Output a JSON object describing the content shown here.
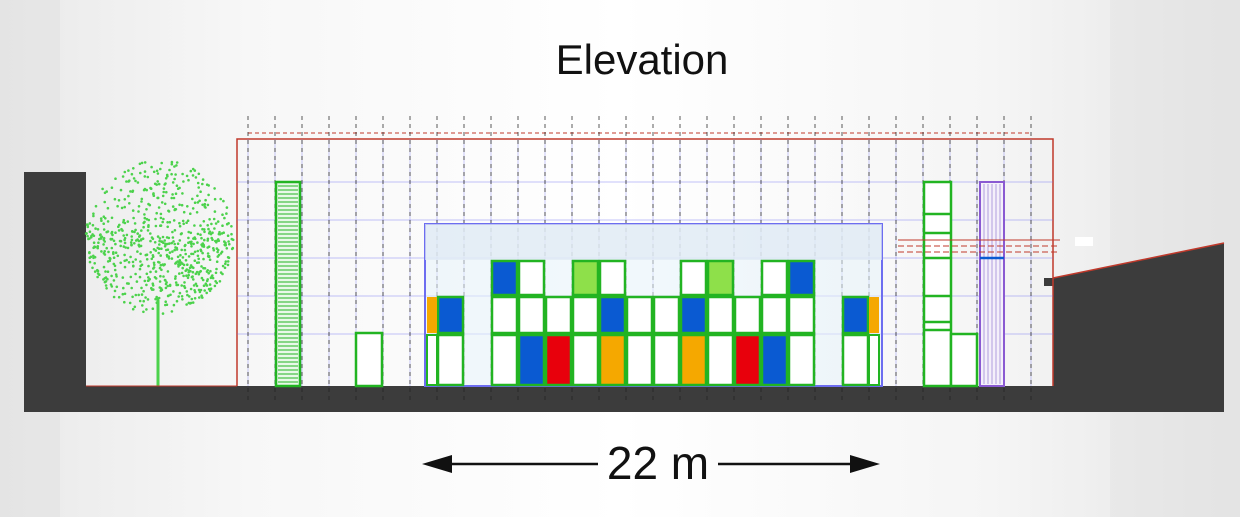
{
  "title": "Elevation",
  "dimension": {
    "label": "22 m"
  },
  "colors": {
    "ground": "#3c3c3c",
    "tree": "#4cd24c",
    "outline_red": "#c0392b",
    "grid_blue": "#6d6df0",
    "frame_green": "#22b422",
    "panel_blue": "#0a5ad2",
    "panel_red": "#e8000c",
    "panel_orange": "#f5a800",
    "panel_lime": "#8ee04a"
  }
}
